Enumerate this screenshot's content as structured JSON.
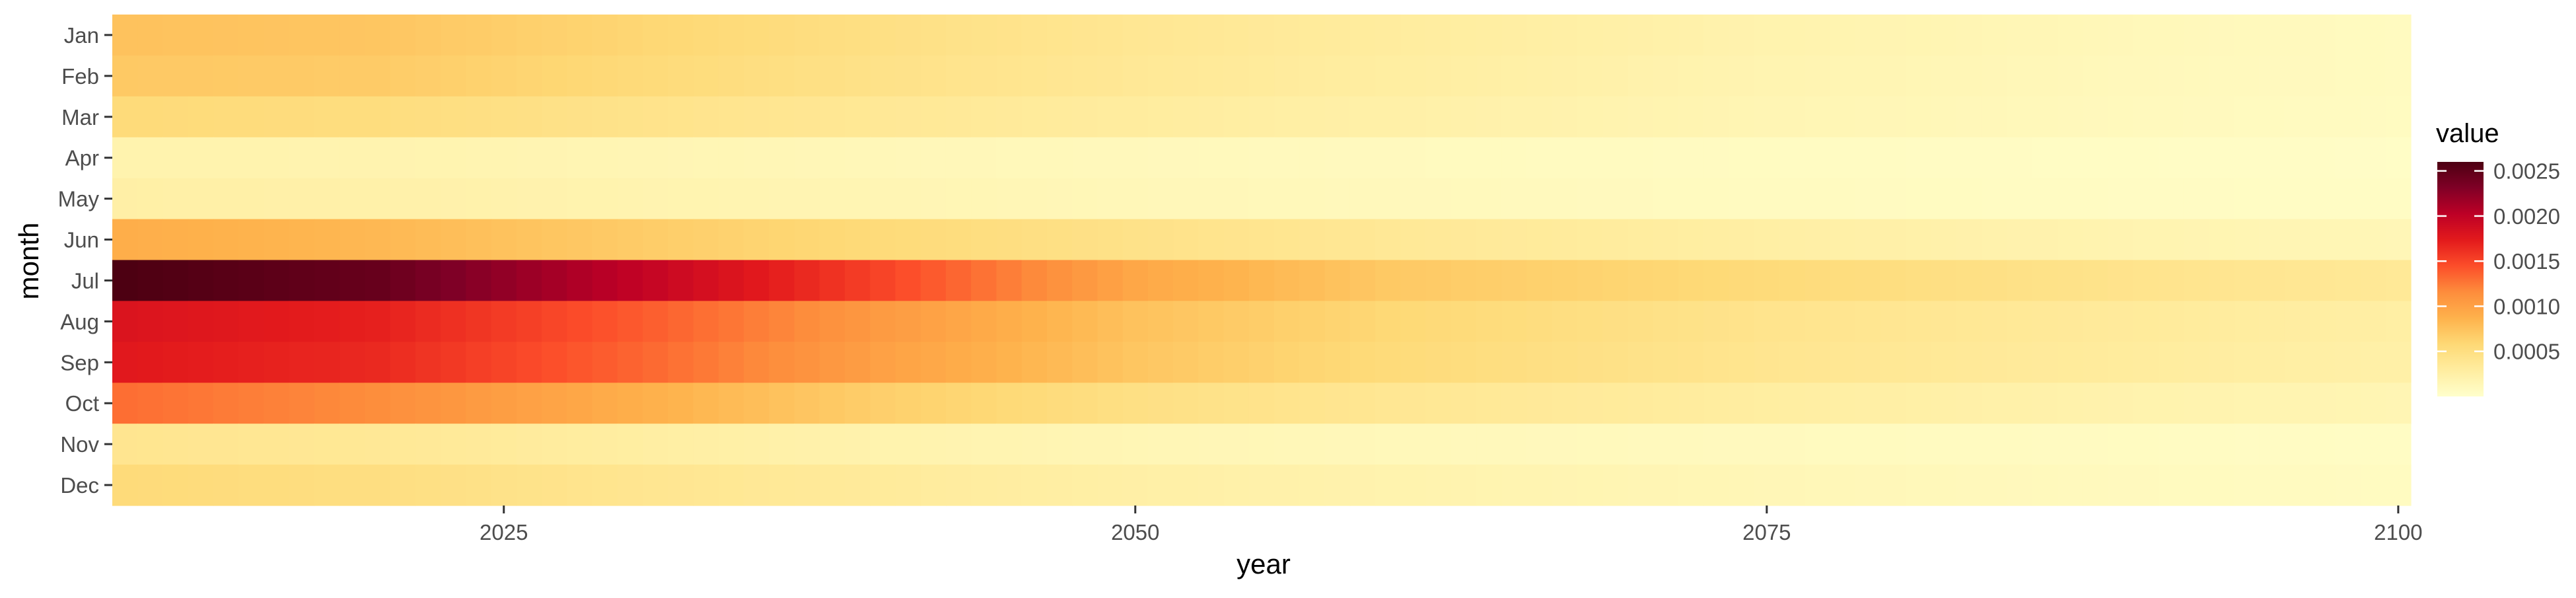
{
  "chart_data": {
    "type": "heatmap",
    "title": "",
    "xlabel": "year",
    "ylabel": "month",
    "x": {
      "start": 2010,
      "end": 2100,
      "step": 1,
      "ticks": [
        2025,
        2050,
        2075,
        2100
      ],
      "tick_labels": [
        "2025",
        "2050",
        "2075",
        "2100"
      ]
    },
    "months": [
      "Jan",
      "Feb",
      "Mar",
      "Apr",
      "May",
      "Jun",
      "Jul",
      "Aug",
      "Sep",
      "Oct",
      "Nov",
      "Dec"
    ],
    "value_profiles": {
      "description": "approximate values by month at anchor years; values interpolated linearly between anchors",
      "anchor_years": [
        2010,
        2020,
        2030,
        2040,
        2050,
        2060,
        2075,
        2090,
        2100
      ],
      "rows": {
        "Jan": [
          0.00075,
          0.00072,
          0.0006,
          0.00048,
          0.00038,
          0.0003,
          0.0002,
          0.00012,
          8e-05
        ],
        "Feb": [
          0.0007,
          0.00068,
          0.00056,
          0.00045,
          0.00036,
          0.00028,
          0.00018,
          0.00011,
          8e-05
        ],
        "Mar": [
          0.00055,
          0.00052,
          0.00044,
          0.00036,
          0.0003,
          0.00024,
          0.00016,
          0.0001,
          7e-05
        ],
        "Apr": [
          0.0002,
          0.00019,
          0.00016,
          0.00013,
          0.00011,
          9e-05,
          7e-05,
          5e-05,
          4e-05
        ],
        "May": [
          0.00025,
          0.00023,
          0.00019,
          0.00016,
          0.00013,
          0.00011,
          8e-05,
          6e-05,
          5e-05
        ],
        "Jun": [
          0.0009,
          0.00082,
          0.00068,
          0.00055,
          0.00045,
          0.00036,
          0.00026,
          0.00018,
          0.00014
        ],
        "Jul": [
          0.0026,
          0.00245,
          0.002,
          0.0015,
          0.00095,
          0.0007,
          0.00055,
          0.00042,
          0.00035
        ],
        "Aug": [
          0.0018,
          0.0017,
          0.0014,
          0.00105,
          0.00075,
          0.00058,
          0.00042,
          0.00032,
          0.00026
        ],
        "Sep": [
          0.00175,
          0.00165,
          0.00135,
          0.001,
          0.00072,
          0.00055,
          0.0004,
          0.0003,
          0.00024
        ],
        "Oct": [
          0.0013,
          0.00115,
          0.0009,
          0.00065,
          0.00048,
          0.00038,
          0.00028,
          0.0002,
          0.00016
        ],
        "Nov": [
          0.0004,
          0.00036,
          0.00028,
          0.0002,
          0.00015,
          0.00012,
          9e-05,
          7e-05,
          5e-05
        ],
        "Dec": [
          0.00055,
          0.0005,
          0.0004,
          0.00032,
          0.00025,
          0.0002,
          0.00014,
          9e-05,
          7e-05
        ]
      }
    },
    "legend": {
      "title": "value",
      "position": "right",
      "min": 0,
      "max": 0.0026,
      "ticks": [
        0.0005,
        0.001,
        0.0015,
        0.002,
        0.0025
      ],
      "tick_labels": [
        "0.0005",
        "0.0010",
        "0.0015",
        "0.0020",
        "0.0025"
      ],
      "colors": [
        "#ffffcc",
        "#ffeda0",
        "#fed976",
        "#feb24c",
        "#fd8d3c",
        "#fc4e2a",
        "#e31a1c",
        "#bd0026",
        "#800026",
        "#4d0012"
      ]
    },
    "grid": false
  }
}
